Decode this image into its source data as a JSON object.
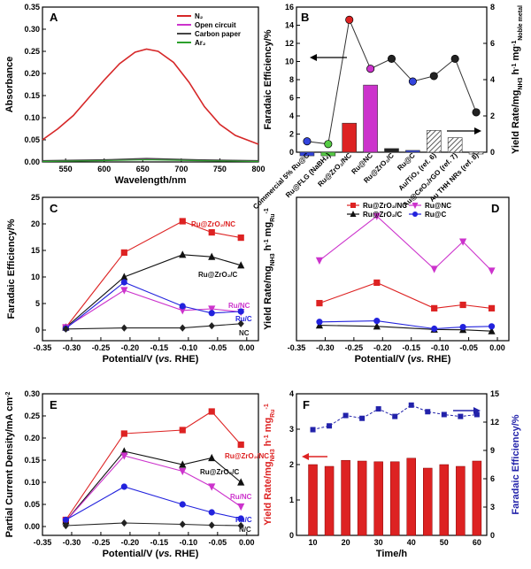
{
  "chart_data": [
    {
      "panel": "A",
      "type": "line",
      "xlabel": "Wavelength/nm",
      "ylabel": "Absorbance",
      "xlim": [
        520,
        800
      ],
      "ylim": [
        0,
        0.35
      ],
      "xticks": [
        550,
        600,
        650,
        700,
        750,
        800
      ],
      "yticks": [
        0,
        0.05,
        0.1,
        0.15,
        0.2,
        0.25,
        0.3,
        0.35
      ],
      "ytick_labels": [
        "0.00",
        "0.05",
        "0.10",
        "0.15",
        "0.20",
        "0.25",
        "0.30",
        "0.35"
      ],
      "legend_position": "top-right",
      "series": [
        {
          "name": "N₂",
          "color": "#d62728",
          "x": [
            520,
            540,
            560,
            580,
            600,
            620,
            640,
            655,
            670,
            690,
            710,
            730,
            750,
            770,
            800
          ],
          "y": [
            0.05,
            0.075,
            0.105,
            0.145,
            0.185,
            0.222,
            0.248,
            0.255,
            0.25,
            0.225,
            0.18,
            0.125,
            0.085,
            0.06,
            0.04
          ]
        },
        {
          "name": "Open circuit",
          "color": "#cc33cc",
          "x": [
            520,
            600,
            655,
            720,
            800
          ],
          "y": [
            0.002,
            0.004,
            0.006,
            0.004,
            0.002
          ]
        },
        {
          "name": "Carbon paper",
          "color": "#444444",
          "x": [
            520,
            600,
            655,
            720,
            800
          ],
          "y": [
            0.003,
            0.005,
            0.008,
            0.005,
            0.003
          ]
        },
        {
          "name": "Ar₂",
          "color": "#2ca02c",
          "x": [
            520,
            600,
            655,
            720,
            800
          ],
          "y": [
            0.001,
            0.003,
            0.005,
            0.003,
            0.001
          ]
        }
      ]
    },
    {
      "panel": "B",
      "type": "bar",
      "ylabel": "Faradaic Efficiency/%",
      "ylabel_right": "Yield Rate/mgₙₕ₃ h⁻¹ mg⁻¹Noble metal",
      "ylabel_right_main": "Yield Rate/mg",
      "ylabel_right_sub1": "NH3",
      "ylabel_right_mid": " h",
      "ylabel_right_sup1": "-1",
      "ylabel_right_mid2": " mg",
      "ylabel_right_sup2": "-1",
      "ylabel_right_sub2": "Noble metal",
      "ylim": [
        0,
        16
      ],
      "ylim_right": [
        0,
        8
      ],
      "yticks": [
        0,
        2,
        4,
        6,
        8,
        10,
        12,
        14,
        16
      ],
      "yticks_right": [
        0,
        2,
        4,
        6,
        8
      ],
      "categories": [
        "Commercial 5% Ru@C",
        "Ru@FLG (NaBH₄)",
        "Ru@ZrO₂/NC",
        "Ru@NC",
        "Ru@ZrO₂/C",
        "Ru@C",
        "Au/TiO₂ (ref. 6)",
        "Au@CeO₂/rGO (ref. 7)",
        "Au THH NRs (ref. 8)"
      ],
      "bar_values_yield": [
        -0.2,
        -0.2,
        1.6,
        3.7,
        0.2,
        0.1,
        1.2,
        0.8,
        -0.1
      ],
      "bar_colors": [
        "#3344dd",
        "#55cc44",
        "#dd2222",
        "#cc33cc",
        "#222222",
        "#3344dd",
        "hatch",
        "hatch",
        "hatch"
      ],
      "fe_values": [
        1.2,
        0.9,
        14.6,
        9.2,
        10.3,
        7.8,
        8.4,
        10.3,
        4.4
      ],
      "fe_colors": [
        "#3344dd",
        "#55cc44",
        "#dd2222",
        "#cc33cc",
        "#222222",
        "#3344dd",
        "#222222",
        "#222222",
        "#222222"
      ]
    },
    {
      "panel": "C",
      "type": "line",
      "xlabel_main": "Potential/V (",
      "xlabel_italic": "vs.",
      "xlabel_end": " RHE)",
      "ylabel": "Faradaic Efficiency/%",
      "xlim": [
        -0.35,
        0.02
      ],
      "ylim": [
        -2,
        25
      ],
      "xticks": [
        -0.35,
        -0.3,
        -0.25,
        -0.2,
        -0.15,
        -0.1,
        -0.05,
        0.0
      ],
      "xtick_labels": [
        "-0.35",
        "-0.30",
        "-0.25",
        "-0.20",
        "-0.15",
        "-0.10",
        "-0.05",
        "0.00"
      ],
      "yticks": [
        0,
        5,
        10,
        15,
        20,
        25
      ],
      "x": [
        -0.31,
        -0.21,
        -0.11,
        -0.06,
        -0.01
      ],
      "series": [
        {
          "name": "Ru@ZrO₂/NC",
          "color": "#dd2222",
          "marker": "square",
          "y": [
            0.5,
            14.6,
            20.5,
            18.4,
            17.4
          ]
        },
        {
          "name": "Ru@ZrO₂/C",
          "color": "#111111",
          "marker": "triangle",
          "y": [
            0.5,
            10.0,
            14.2,
            13.8,
            12.2
          ]
        },
        {
          "name": "Ru/NC",
          "color": "#cc33cc",
          "marker": "invtriangle",
          "y": [
            0.5,
            7.5,
            3.7,
            4.0,
            3.4
          ]
        },
        {
          "name": "Ru/C",
          "color": "#2222dd",
          "marker": "circle",
          "y": [
            0.3,
            9.0,
            4.5,
            3.2,
            3.5
          ]
        },
        {
          "name": "NC",
          "color": "#222222",
          "marker": "diamond",
          "y": [
            0.2,
            0.4,
            0.4,
            0.8,
            1.2
          ]
        }
      ],
      "labels": [
        "Ru@ZrO₂/NC",
        "Ru@ZrO₂/C",
        "Ru/NC",
        "Ru/C",
        "NC"
      ]
    },
    {
      "panel": "D",
      "type": "line",
      "xlabel_main": "Potential/V (",
      "xlabel_italic": "vs.",
      "xlabel_end": " RHE)",
      "ylabel": "Yield Rate/mgₙₕ₃ h⁻¹ mgᵣᵤ⁻¹",
      "ylabel_main": "Yield Rate/mg",
      "ylabel_sub1": "NH3",
      "ylabel_mid": " h",
      "ylabel_sup1": "-1",
      "ylabel_mid2": " mg",
      "ylabel_sub2": "Ru",
      "ylabel_sup2": "-1",
      "xlim": [
        -0.35,
        0.02
      ],
      "ylim": [
        0,
        4.2
      ],
      "xticks": [
        -0.35,
        -0.3,
        -0.25,
        -0.2,
        -0.15,
        -0.1,
        -0.05,
        0.0
      ],
      "xtick_labels": [
        "-0.35",
        "-0.30",
        "-0.25",
        "-0.20",
        "-0.15",
        "-0.10",
        "-0.05",
        "0.00"
      ],
      "legend_position": "top",
      "x": [
        -0.31,
        -0.21,
        -0.11,
        -0.06,
        -0.01
      ],
      "series": [
        {
          "name": "Ru@ZrO₂/NC",
          "color": "#dd2222",
          "marker": "square",
          "y": [
            1.1,
            1.7,
            0.95,
            1.05,
            0.95
          ]
        },
        {
          "name": "Ru@NC",
          "color": "#cc33cc",
          "marker": "invtriangle",
          "y": [
            2.35,
            3.65,
            2.1,
            2.9,
            2.05
          ]
        },
        {
          "name": "Ru@ZrO₂/C",
          "color": "#111111",
          "marker": "triangle",
          "y": [
            0.45,
            0.42,
            0.33,
            0.32,
            0.28
          ]
        },
        {
          "name": "Ru@C",
          "color": "#2222dd",
          "marker": "circle",
          "y": [
            0.55,
            0.58,
            0.35,
            0.4,
            0.42
          ]
        }
      ]
    },
    {
      "panel": "E",
      "type": "line",
      "xlabel_main": "Potential/V (",
      "xlabel_italic": "vs.",
      "xlabel_end": " RHE)",
      "ylabel": "Partial Current Density/mA cm⁻²",
      "ylabel_main": "Partial Current Density/mA cm",
      "ylabel_sup": "-2",
      "xlim": [
        -0.35,
        0.02
      ],
      "ylim": [
        -0.02,
        0.3
      ],
      "xticks": [
        -0.35,
        -0.3,
        -0.25,
        -0.2,
        -0.15,
        -0.1,
        -0.05,
        0.0
      ],
      "xtick_labels": [
        "-0.35",
        "-0.30",
        "-0.25",
        "-0.20",
        "-0.15",
        "-0.10",
        "-0.05",
        "0.00"
      ],
      "yticks": [
        0,
        0.05,
        0.1,
        0.15,
        0.2,
        0.25,
        0.3
      ],
      "ytick_labels": [
        "0.00",
        "0.05",
        "0.10",
        "0.15",
        "0.20",
        "0.25",
        "0.30"
      ],
      "x": [
        -0.31,
        -0.21,
        -0.11,
        -0.06,
        -0.01
      ],
      "series": [
        {
          "name": "Ru@ZrO₂/NC",
          "color": "#dd2222",
          "marker": "square",
          "y": [
            0.015,
            0.21,
            0.218,
            0.26,
            0.185
          ]
        },
        {
          "name": "Ru@ZrO₂/C",
          "color": "#111111",
          "marker": "triangle",
          "y": [
            0.012,
            0.17,
            0.14,
            0.155,
            0.1
          ]
        },
        {
          "name": "Ru/NC",
          "color": "#cc33cc",
          "marker": "invtriangle",
          "y": [
            0.012,
            0.16,
            0.125,
            0.09,
            0.045
          ]
        },
        {
          "name": "Ru/C",
          "color": "#2222dd",
          "marker": "circle",
          "y": [
            0.015,
            0.09,
            0.05,
            0.032,
            0.018
          ]
        },
        {
          "name": "N/C",
          "color": "#222222",
          "marker": "diamond",
          "y": [
            0.002,
            0.008,
            0.005,
            0.003,
            0.002
          ]
        }
      ],
      "labels": [
        "Ru@ZrO₂/NC",
        "Ru@ZrO₂/C",
        "Ru/NC",
        "Ru/C",
        "N/C"
      ]
    },
    {
      "panel": "F",
      "type": "bar",
      "xlabel": "Time/h",
      "ylabel": "Yield Rate/mgₙₕ₃ h⁻¹ mgᵣᵤ⁻¹",
      "ylabel_main": "Yield Rate/mg",
      "ylabel_sub1": "NH3",
      "ylabel_mid": " h",
      "ylabel_sup1": "-1",
      "ylabel_mid2": " mg",
      "ylabel_sub2": "Ru",
      "ylabel_right": "Faradaic Efficiency/%",
      "xlim": [
        5,
        63
      ],
      "ylim": [
        0,
        4
      ],
      "ylim_right": [
        0,
        15
      ],
      "xticks": [
        10,
        20,
        30,
        40,
        50,
        60
      ],
      "yticks": [
        0,
        1,
        2,
        3,
        4
      ],
      "yticks_right": [
        0,
        3,
        6,
        9,
        12,
        15
      ],
      "x": [
        10,
        15,
        20,
        25,
        30,
        35,
        40,
        45,
        50,
        55,
        60
      ],
      "bar_color": "#dd2222",
      "line_color": "#2222aa",
      "yield_values": [
        2.0,
        1.95,
        2.12,
        2.1,
        2.08,
        2.08,
        2.18,
        1.9,
        2.0,
        1.95,
        2.1
      ],
      "fe_values": [
        11.2,
        11.6,
        12.7,
        12.4,
        13.4,
        12.6,
        13.8,
        13.1,
        12.8,
        12.6,
        12.8
      ]
    }
  ]
}
